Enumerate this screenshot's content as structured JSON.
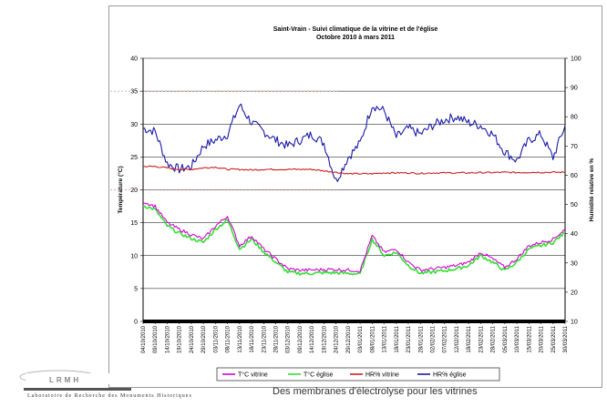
{
  "caption": "Des membranes d'électrolyse pour les vitrines",
  "logo": {
    "acronym": "LRMH",
    "text": "Laboratoire de Recherche des Monuments Historiques"
  },
  "chart_data": {
    "type": "line",
    "title": "Saint-Vrain - Suivi climatique de la vitrine et de l'église",
    "subtitle": "Octobre 2010 à mars 2011",
    "ylabel_left": "Température (°C)",
    "ylabel_right": "Humidité relative en %",
    "ylim_left": [
      0,
      40
    ],
    "ylim_right": [
      10,
      100
    ],
    "yticks_left": [
      0,
      5,
      10,
      15,
      20,
      25,
      30,
      35,
      40
    ],
    "yticks_right": [
      10,
      20,
      30,
      40,
      50,
      60,
      70,
      80,
      90,
      100
    ],
    "grid": true,
    "legend_position": "bottom",
    "x": [
      "04/10/2010",
      "09/10/2010",
      "14/10/2010",
      "19/10/2010",
      "24/10/2010",
      "29/10/2010",
      "03/11/2010",
      "08/11/2010",
      "13/11/2010",
      "18/11/2010",
      "23/11/2010",
      "28/11/2010",
      "03/12/2010",
      "09/12/2010",
      "14/12/2010",
      "19/12/2010",
      "24/12/2010",
      "29/12/2010",
      "03/01/2011",
      "08/01/2011",
      "13/01/2011",
      "18/01/2011",
      "23/01/2011",
      "28/01/2011",
      "02/02/2011",
      "07/02/2011",
      "12/02/2011",
      "18/02/2011",
      "23/02/2011",
      "28/02/2011",
      "05/03/2011",
      "10/03/2011",
      "15/03/2011",
      "20/03/2011",
      "25/03/2011",
      "30/03/2011"
    ],
    "series": [
      {
        "name": "T°C vitrine",
        "axis": "left",
        "color": "#d400d4",
        "values": [
          18.2,
          17.5,
          15.0,
          14.0,
          13.2,
          12.5,
          14.5,
          16.0,
          11.5,
          13.0,
          11.0,
          9.5,
          8.0,
          7.8,
          7.8,
          7.9,
          7.9,
          7.8,
          7.7,
          13.0,
          10.5,
          11.0,
          9.0,
          7.8,
          8.0,
          8.2,
          8.5,
          9.0,
          10.5,
          9.5,
          8.2,
          9.5,
          11.5,
          12.0,
          12.5,
          14.0
        ]
      },
      {
        "name": "T°C église",
        "axis": "left",
        "color": "#33e033",
        "values": [
          17.6,
          17.0,
          14.5,
          13.4,
          12.6,
          12.0,
          14.0,
          15.4,
          11.0,
          12.5,
          10.6,
          9.0,
          7.5,
          7.3,
          7.3,
          7.4,
          7.4,
          7.3,
          7.2,
          12.5,
          10.0,
          10.5,
          8.5,
          7.3,
          7.5,
          7.7,
          8.0,
          8.5,
          10.0,
          9.0,
          7.7,
          9.0,
          11.0,
          11.5,
          12.0,
          13.5
        ]
      },
      {
        "name": "HR% vitrine",
        "axis": "right",
        "color": "#cc1f1f",
        "values": [
          63.0,
          63.0,
          62.5,
          62.0,
          62.0,
          62.5,
          62.8,
          62.0,
          62.0,
          61.8,
          62.0,
          62.0,
          62.0,
          62.0,
          62.0,
          61.5,
          61.0,
          60.5,
          60.5,
          60.5,
          60.8,
          60.8,
          60.8,
          60.6,
          60.8,
          60.8,
          60.8,
          60.8,
          60.9,
          60.9,
          61.0,
          60.9,
          61.0,
          61.0,
          61.0,
          61.0
        ]
      },
      {
        "name": "HR% église",
        "axis": "right",
        "color": "#1a1aa8",
        "values": [
          76.0,
          75.0,
          64.0,
          62.0,
          63.0,
          70.0,
          72.0,
          74.0,
          84.0,
          78.0,
          75.0,
          72.0,
          70.0,
          72.0,
          74.0,
          71.0,
          58.0,
          66.0,
          71.0,
          84.0,
          82.0,
          73.0,
          76.0,
          74.0,
          77.0,
          79.0,
          80.0,
          78.0,
          77.0,
          74.0,
          68.0,
          65.0,
          72.0,
          74.0,
          66.0,
          77.0
        ]
      }
    ]
  }
}
